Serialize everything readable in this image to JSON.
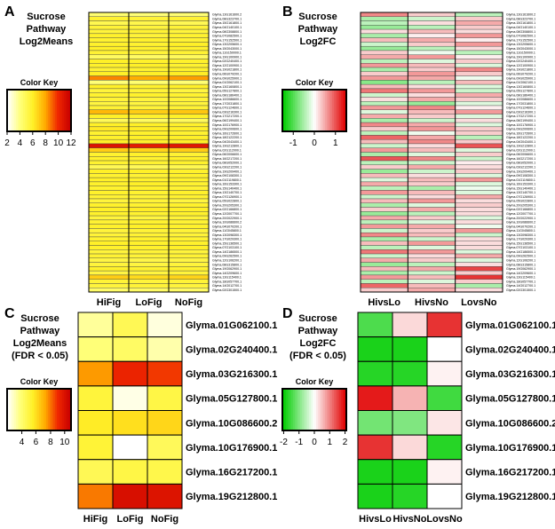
{
  "panels": {
    "A": {
      "letter": "A",
      "title_lines": [
        "Sucrose",
        "Pathway",
        "Log2Means"
      ],
      "key_title": "Color Key",
      "key_ticks": [
        "2",
        "4",
        "6",
        "8",
        "10",
        "12"
      ],
      "columns": [
        "HiFig",
        "LoFig",
        "NoFig"
      ]
    },
    "B": {
      "letter": "B",
      "title_lines": [
        "Sucrose",
        "Pathway",
        "Log2FC"
      ],
      "key_title": "Color Key",
      "key_ticks": [
        "-1",
        "0",
        "1"
      ],
      "columns": [
        "HivsLo",
        "HivsNo",
        "LovsNo"
      ]
    },
    "C": {
      "letter": "C",
      "title_lines": [
        "Sucrose",
        "Pathway",
        "Log2Means",
        "(FDR < 0.05)"
      ],
      "key_title": "Color Key",
      "key_ticks": [
        "4",
        "6",
        "8",
        "10"
      ],
      "columns": [
        "HiFig",
        "LoFig",
        "NoFig"
      ]
    },
    "D": {
      "letter": "D",
      "title_lines": [
        "Sucrose",
        "Pathway",
        "Log2FC",
        "(FDR < 0.05)"
      ],
      "key_title": "Color Key",
      "key_ticks": [
        "-2",
        "-1",
        "0",
        "1",
        "2"
      ],
      "columns": [
        "HivsLo",
        "HivsNo",
        "LovsNo"
      ]
    }
  },
  "chart_data": [
    {
      "panel": "A",
      "type": "heatmap",
      "title": "Sucrose Pathway Log2Means",
      "xlabels": [
        "HiFig",
        "LoFig",
        "NoFig"
      ],
      "row_count": 66,
      "scale": [
        2,
        12
      ],
      "row_labels": [
        "Glyma.13G161600.2",
        "Glyma.08G323700.1",
        "Glyma.15G161800.1",
        "Glyma.04G140100.1",
        "Glyma.08G308800.1",
        "Glyma.07G082500.1",
        "Glyma.17G152500.1",
        "Glyma.13G205600.1",
        "Glyma.15G043000.1",
        "Glyma.11G150000.1",
        "Glyma.19G100900.1",
        "Glyma.02G240400.1",
        "Glyma.12G100900.1",
        "Glyma.19G021800.1",
        "Glyma.06G079200.1",
        "Glyma.09G025900.1",
        "Glyma.01G062100.1",
        "Glyma.13G160800.1",
        "Glyma.05G127800.1",
        "Glyma.08G186400.1",
        "Glyma.10G086600.1",
        "Glyma.17G031800.1",
        "Glyma.07G124600.1",
        "Glyma.03G216300.1",
        "Glyma.17G217200.1",
        "Glyma.06G199400.1",
        "Glyma.10G176900.1",
        "Glyma.09G200600.1",
        "Glyma.16G172600.1",
        "Glyma.18G122200.1",
        "Glyma.04G043400.1",
        "Glyma.19G212800.1",
        "Glyma.02G112000.1",
        "Glyma.06G006600.1",
        "Glyma.16G217200.1",
        "Glyma.08G052000.1",
        "Glyma.03G212200.1",
        "Glyma.19G209400.1",
        "Glyma.09G108300.1",
        "Glyma.01G119800.1",
        "Glyma.16G153300.1",
        "Glyma.15G140400.1",
        "Glyma.13G140700.1",
        "Glyma.07G126900.1",
        "Glyma.05G022800.1",
        "Glyma.20G205300.1",
        "Glyma.02G166800.1",
        "Glyma.12G007700.1",
        "Glyma.20G022900.1",
        "Glyma.10G086600.2",
        "Glyma.04G070200.1",
        "Glyma.11G045800.1",
        "Glyma.13G098300.1",
        "Glyma.17G029300.1",
        "Glyma.15G136500.1",
        "Glyma.07G103100.1",
        "Glyma.14G186500.1",
        "Glyma.09G262500.1",
        "Glyma.12G106200.1",
        "Glyma.08G315800.1",
        "Glyma.19G062900.1",
        "Glyma.14G209600.1",
        "Glyma.13G115400.1",
        "Glyma.18G057700.1",
        "Glyma.14G012700.1",
        "Glyma.02G301500.1"
      ],
      "values": [
        [
          4.2,
          4.0,
          4.1
        ],
        [
          5.8,
          5.6,
          5.7
        ],
        [
          5.0,
          5.1,
          4.9
        ],
        [
          5.6,
          5.5,
          5.6
        ],
        [
          5.5,
          5.7,
          5.5
        ],
        [
          5.9,
          5.6,
          5.8
        ],
        [
          5.8,
          5.9,
          5.7
        ],
        [
          5.9,
          5.8,
          6.0
        ],
        [
          6.0,
          5.9,
          5.9
        ],
        [
          5.7,
          5.6,
          5.7
        ],
        [
          4.6,
          4.5,
          4.7
        ],
        [
          6.0,
          5.9,
          5.9
        ],
        [
          5.9,
          6.0,
          5.8
        ],
        [
          5.7,
          5.8,
          5.9
        ],
        [
          6.0,
          6.0,
          6.1
        ],
        [
          8.6,
          7.9,
          8.2
        ],
        [
          4.0,
          4.2,
          4.1
        ],
        [
          6.0,
          5.9,
          6.0
        ],
        [
          5.5,
          5.6,
          5.4
        ],
        [
          5.8,
          5.9,
          5.8
        ],
        [
          5.6,
          5.5,
          5.6
        ],
        [
          5.4,
          5.4,
          5.5
        ],
        [
          5.7,
          5.6,
          5.7
        ],
        [
          7.6,
          7.0,
          7.2
        ],
        [
          6.0,
          5.9,
          6.0
        ],
        [
          4.8,
          4.6,
          4.7
        ],
        [
          6.0,
          6.0,
          5.9
        ],
        [
          6.2,
          6.1,
          6.0
        ],
        [
          5.8,
          5.9,
          5.8
        ],
        [
          5.9,
          6.0,
          6.0
        ],
        [
          6.0,
          5.9,
          6.0
        ],
        [
          11.0,
          10.6,
          10.8
        ],
        [
          7.0,
          6.8,
          7.0
        ],
        [
          5.8,
          5.9,
          5.7
        ],
        [
          5.9,
          5.8,
          6.0
        ],
        [
          5.8,
          5.8,
          5.9
        ],
        [
          4.9,
          4.8,
          5.0
        ],
        [
          6.0,
          6.0,
          5.9
        ],
        [
          5.8,
          5.7,
          5.9
        ],
        [
          6.0,
          5.9,
          5.9
        ],
        [
          5.9,
          6.0,
          5.8
        ],
        [
          5.8,
          5.9,
          5.7
        ],
        [
          5.9,
          5.8,
          5.9
        ],
        [
          5.7,
          5.6,
          5.8
        ],
        [
          5.5,
          5.6,
          5.4
        ],
        [
          5.9,
          5.8,
          5.9
        ],
        [
          6.0,
          6.1,
          6.0
        ],
        [
          5.9,
          5.8,
          5.9
        ],
        [
          5.5,
          5.4,
          5.6
        ],
        [
          5.7,
          5.8,
          5.7
        ],
        [
          5.9,
          6.0,
          5.9
        ],
        [
          5.5,
          5.6,
          5.6
        ],
        [
          5.6,
          5.7,
          5.6
        ],
        [
          5.8,
          5.9,
          5.8
        ],
        [
          6.0,
          5.9,
          5.9
        ],
        [
          5.9,
          5.9,
          6.0
        ],
        [
          5.5,
          5.6,
          5.5
        ],
        [
          5.7,
          5.6,
          5.7
        ],
        [
          5.3,
          5.2,
          5.3
        ],
        [
          5.5,
          5.4,
          5.5
        ],
        [
          5.9,
          5.8,
          5.8
        ],
        [
          5.3,
          5.4,
          5.5
        ],
        [
          7.0,
          6.6,
          6.8
        ],
        [
          5.6,
          5.5,
          5.6
        ],
        [
          5.5,
          5.6,
          5.5
        ],
        [
          4.4,
          4.5,
          4.5
        ]
      ]
    },
    {
      "panel": "B",
      "type": "heatmap",
      "title": "Sucrose Pathway Log2FC",
      "xlabels": [
        "HivsLo",
        "HivsNo",
        "LovsNo"
      ],
      "row_count": 66,
      "scale": [
        -1.5,
        1.5
      ],
      "row_labels": [
        "Glyma.13G161600.2",
        "Glyma.08G323700.1",
        "Glyma.15G161800.1",
        "Glyma.04G140100.1",
        "Glyma.08G308800.1",
        "Glyma.07G082500.1",
        "Glyma.17G152500.1",
        "Glyma.13G205600.1",
        "Glyma.15G043000.1",
        "Glyma.11G150000.1",
        "Glyma.19G100900.1",
        "Glyma.02G240400.1",
        "Glyma.12G100900.1",
        "Glyma.19G021800.1",
        "Glyma.06G079200.1",
        "Glyma.09G025900.1",
        "Glyma.01G062100.1",
        "Glyma.13G160800.1",
        "Glyma.05G127800.1",
        "Glyma.08G186400.1",
        "Glyma.10G086600.1",
        "Glyma.17G031800.1",
        "Glyma.07G124600.1",
        "Glyma.03G216300.1",
        "Glyma.17G217200.1",
        "Glyma.06G199400.1",
        "Glyma.10G176900.1",
        "Glyma.09G200600.1",
        "Glyma.16G172600.1",
        "Glyma.18G122200.1",
        "Glyma.04G043400.1",
        "Glyma.19G212800.1",
        "Glyma.02G112000.1",
        "Glyma.06G006600.1",
        "Glyma.16G217200.1",
        "Glyma.08G052000.1",
        "Glyma.03G212200.1",
        "Glyma.19G209400.1",
        "Glyma.09G108300.1",
        "Glyma.01G119800.1",
        "Glyma.16G153300.1",
        "Glyma.15G140400.1",
        "Glyma.13G140700.1",
        "Glyma.07G126900.1",
        "Glyma.05G022800.1",
        "Glyma.20G205300.1",
        "Glyma.02G166800.1",
        "Glyma.12G007700.1",
        "Glyma.20G022900.1",
        "Glyma.10G086600.2",
        "Glyma.04G070200.1",
        "Glyma.11G045800.1",
        "Glyma.13G098300.1",
        "Glyma.17G029300.1",
        "Glyma.15G136500.1",
        "Glyma.07G103100.1",
        "Glyma.14G186500.1",
        "Glyma.09G262500.1",
        "Glyma.12G106200.1",
        "Glyma.08G315800.1",
        "Glyma.19G062900.1",
        "Glyma.14G209600.1",
        "Glyma.13G115400.1",
        "Glyma.18G057700.1",
        "Glyma.14G012700.1",
        "Glyma.02G301500.1"
      ],
      "values": [
        [
          0.7,
          0.3,
          -0.4
        ],
        [
          -0.5,
          -0.3,
          0.3
        ],
        [
          -0.4,
          0.2,
          0.5
        ],
        [
          -0.6,
          -0.4,
          0.3
        ],
        [
          0.2,
          0.4,
          0.2
        ],
        [
          -0.5,
          0.1,
          0.6
        ],
        [
          0.4,
          0.5,
          0.1
        ],
        [
          -0.3,
          0.3,
          0.6
        ],
        [
          -0.6,
          -0.4,
          0.2
        ],
        [
          0.3,
          -0.1,
          -0.4
        ],
        [
          0.5,
          0.6,
          0.1
        ],
        [
          -0.4,
          -0.2,
          0.3
        ],
        [
          0.6,
          0.4,
          -0.2
        ],
        [
          -0.5,
          0.3,
          0.7
        ],
        [
          0.3,
          0.6,
          0.3
        ],
        [
          0.6,
          0.5,
          -0.1
        ],
        [
          -0.7,
          -0.4,
          0.4
        ],
        [
          0.4,
          0.2,
          -0.2
        ],
        [
          0.8,
          0.6,
          -0.3
        ],
        [
          -0.3,
          0.2,
          0.5
        ],
        [
          0.2,
          0.5,
          0.3
        ],
        [
          -0.4,
          -0.6,
          -0.2
        ],
        [
          0.6,
          0.7,
          0.1
        ],
        [
          -0.2,
          0.4,
          0.6
        ],
        [
          0.5,
          0.3,
          -0.2
        ],
        [
          -0.5,
          -0.3,
          0.2
        ],
        [
          0.7,
          0.5,
          -0.2
        ],
        [
          0.3,
          0.6,
          0.3
        ],
        [
          -0.4,
          -0.1,
          0.3
        ],
        [
          0.9,
          0.5,
          -0.4
        ],
        [
          0.4,
          0.7,
          0.3
        ],
        [
          -0.3,
          0.2,
          1.0
        ],
        [
          0.6,
          0.4,
          -0.2
        ],
        [
          -0.5,
          -0.2,
          0.3
        ],
        [
          1.0,
          0.7,
          -0.3
        ],
        [
          -0.4,
          -0.3,
          0.1
        ],
        [
          0.3,
          0.5,
          0.2
        ],
        [
          -0.6,
          -0.3,
          0.3
        ],
        [
          0.4,
          0.2,
          -0.2
        ],
        [
          -0.2,
          0.4,
          0.6
        ],
        [
          0.5,
          0.3,
          -0.2
        ],
        [
          -0.4,
          -0.5,
          -0.1
        ],
        [
          0.6,
          0.4,
          -0.2
        ],
        [
          -0.3,
          0.2,
          0.5
        ],
        [
          0.4,
          0.6,
          0.2
        ],
        [
          -0.5,
          -0.2,
          0.3
        ],
        [
          0.3,
          0.5,
          0.2
        ],
        [
          -0.6,
          -0.4,
          0.2
        ],
        [
          0.5,
          0.3,
          -0.2
        ],
        [
          -0.4,
          -0.2,
          0.2
        ],
        [
          0.6,
          0.5,
          -0.1
        ],
        [
          -0.3,
          0.3,
          0.6
        ],
        [
          0.7,
          0.4,
          -0.3
        ],
        [
          -0.5,
          -0.3,
          0.2
        ],
        [
          0.4,
          0.6,
          0.2
        ],
        [
          -0.4,
          -0.2,
          0.2
        ],
        [
          0.8,
          0.6,
          -0.2
        ],
        [
          -0.3,
          0.2,
          0.5
        ],
        [
          0.5,
          0.3,
          -0.2
        ],
        [
          -0.6,
          -0.4,
          0.2
        ],
        [
          0.4,
          0.5,
          1.1
        ],
        [
          -0.5,
          -0.3,
          0.3
        ],
        [
          0.6,
          0.4,
          1.2
        ],
        [
          -0.4,
          -0.2,
          0.3
        ],
        [
          0.9,
          0.4,
          -0.5
        ],
        [
          0.3,
          0.5,
          0.2
        ]
      ]
    },
    {
      "panel": "C",
      "type": "heatmap",
      "title": "Sucrose Pathway Log2Means (FDR < 0.05)",
      "xlabels": [
        "HiFig",
        "LoFig",
        "NoFig"
      ],
      "row_labels": [
        "Glyma.01G062100.1",
        "Glyma.02G240400.1",
        "Glyma.03G216300.1",
        "Glyma.05G127800.1",
        "Glyma.10G086600.2",
        "Glyma.10G176900.1",
        "Glyma.16G217200.1",
        "Glyma.19G212800.1"
      ],
      "scale": [
        3,
        11
      ],
      "values": [
        [
          4.2,
          5.3,
          3.4
        ],
        [
          4.6,
          5.0,
          4.0
        ],
        [
          8.0,
          9.6,
          9.2
        ],
        [
          5.8,
          3.3,
          5.6
        ],
        [
          6.3,
          6.6,
          6.8
        ],
        [
          5.9,
          3.0,
          5.2
        ],
        [
          5.3,
          5.6,
          5.5
        ],
        [
          8.4,
          10.4,
          10.2
        ]
      ]
    },
    {
      "panel": "D",
      "type": "heatmap",
      "title": "Sucrose Pathway Log2FC (FDR < 0.05)",
      "xlabels": [
        "HivsLo",
        "HivsNo",
        "LovsNo"
      ],
      "row_labels": [
        "Glyma.01G062100.1",
        "Glyma.02G240400.1",
        "Glyma.03G216300.1",
        "Glyma.05G127800.1",
        "Glyma.10G086600.2",
        "Glyma.10G176900.1",
        "Glyma.16G217200.1",
        "Glyma.19G212800.1"
      ],
      "scale": [
        -2,
        2
      ],
      "values": [
        [
          -1.4,
          0.3,
          1.6
        ],
        [
          -1.8,
          -1.8,
          0.0
        ],
        [
          -1.7,
          -1.7,
          0.1
        ],
        [
          1.8,
          0.6,
          -1.5
        ],
        [
          -1.1,
          -1.0,
          0.2
        ],
        [
          1.6,
          0.3,
          -1.7
        ],
        [
          -1.8,
          -1.8,
          0.1
        ],
        [
          -1.8,
          -1.7,
          0.0
        ]
      ]
    }
  ]
}
